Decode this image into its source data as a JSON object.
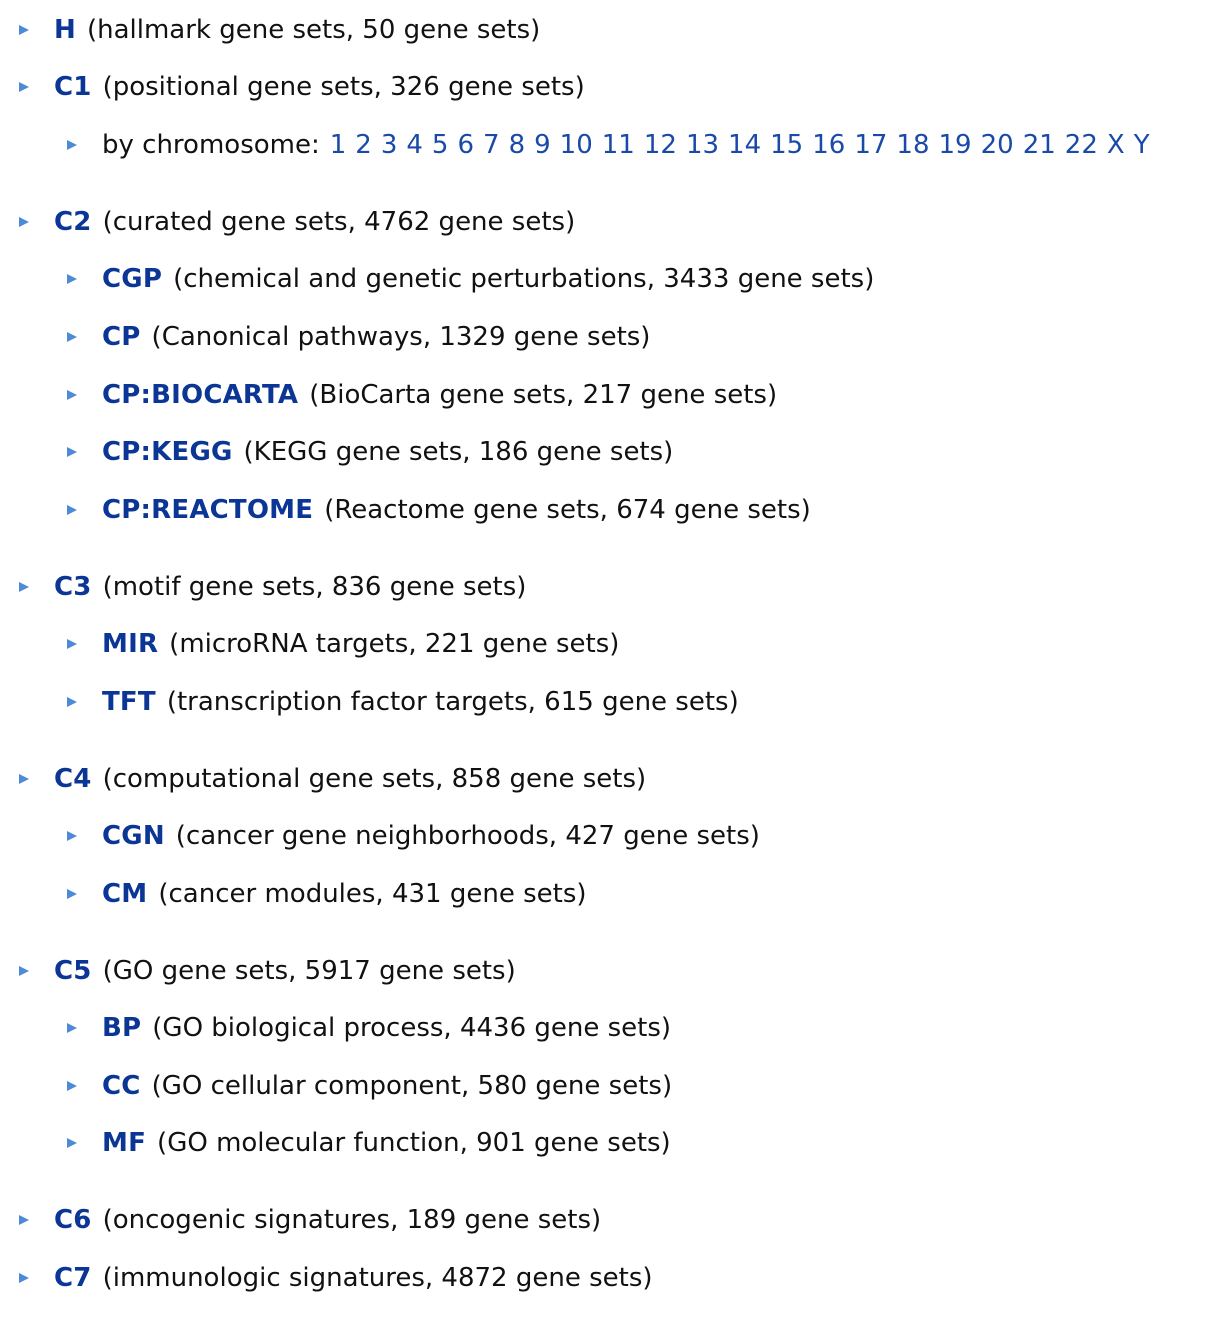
{
  "colors": {
    "code": "#0b3696",
    "link": "#1a4aa8",
    "bullet": "#4f8ad6",
    "text": "#111111"
  },
  "icons": {
    "bullet": "triangle-bullet-icon"
  },
  "collections": {
    "h": {
      "code": "H",
      "desc": "(hallmark gene sets, 50 gene sets)"
    },
    "c1": {
      "code": "C1",
      "desc": "(positional gene sets, 326 gene sets)",
      "chrom_label": "by chromosome:",
      "chromosomes": [
        "1",
        "2",
        "3",
        "4",
        "5",
        "6",
        "7",
        "8",
        "9",
        "10",
        "11",
        "12",
        "13",
        "14",
        "15",
        "16",
        "17",
        "18",
        "19",
        "20",
        "21",
        "22",
        "X",
        "Y"
      ]
    },
    "c2": {
      "code": "C2",
      "desc": "(curated gene sets, 4762 gene sets)",
      "sub": [
        {
          "code": "CGP",
          "desc": "(chemical and genetic perturbations, 3433 gene sets)"
        },
        {
          "code": "CP",
          "desc": "(Canonical pathways, 1329 gene sets)"
        },
        {
          "code": "CP:BIOCARTA",
          "desc": "(BioCarta gene sets, 217 gene sets)"
        },
        {
          "code": "CP:KEGG",
          "desc": "(KEGG gene sets, 186 gene sets)"
        },
        {
          "code": "CP:REACTOME",
          "desc": "(Reactome gene sets, 674 gene sets)"
        }
      ]
    },
    "c3": {
      "code": "C3",
      "desc": "(motif gene sets, 836 gene sets)",
      "sub": [
        {
          "code": "MIR",
          "desc": "(microRNA targets, 221 gene sets)"
        },
        {
          "code": "TFT",
          "desc": "(transcription factor targets, 615 gene sets)"
        }
      ]
    },
    "c4": {
      "code": "C4",
      "desc": "(computational gene sets, 858 gene sets)",
      "sub": [
        {
          "code": "CGN",
          "desc": "(cancer gene neighborhoods, 427 gene sets)"
        },
        {
          "code": "CM",
          "desc": "(cancer modules, 431 gene sets)"
        }
      ]
    },
    "c5": {
      "code": "C5",
      "desc": "(GO gene sets, 5917 gene sets)",
      "sub": [
        {
          "code": "BP",
          "desc": "(GO biological process, 4436 gene sets)"
        },
        {
          "code": "CC",
          "desc": "(GO cellular component, 580 gene sets)"
        },
        {
          "code": "MF",
          "desc": "(GO molecular function, 901 gene sets)"
        }
      ]
    },
    "c6": {
      "code": "C6",
      "desc": "(oncogenic signatures, 189 gene sets)"
    },
    "c7": {
      "code": "C7",
      "desc": "(immunologic signatures, 4872 gene sets)"
    }
  }
}
